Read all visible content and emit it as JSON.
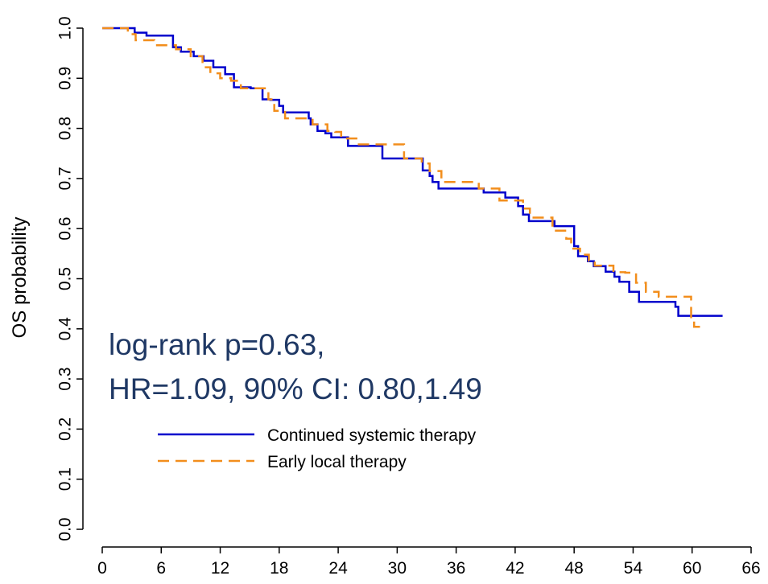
{
  "chart_data": {
    "type": "line",
    "ylabel": "OS probability",
    "xlabel": "",
    "xlim": [
      0,
      66
    ],
    "ylim": [
      0,
      1
    ],
    "x_ticks": [
      "0",
      "6",
      "12",
      "18",
      "24",
      "30",
      "36",
      "42",
      "48",
      "54",
      "60",
      "66"
    ],
    "y_ticks": [
      "0.0",
      "0.1",
      "0.2",
      "0.3",
      "0.4",
      "0.5",
      "0.6",
      "0.7",
      "0.8",
      "0.9",
      "1.0"
    ],
    "grid": false,
    "legend_position": "bottom-left",
    "annotations": [
      "log-rank p=0.63,",
      "HR=1.09, 90% CI: 0.80,1.49"
    ],
    "series": [
      {
        "name": "Continued systemic therapy",
        "color": "#0000cc",
        "style": "solid",
        "x": [
          0,
          3.3,
          4.5,
          7.2,
          8.0,
          9.3,
          10.3,
          11.3,
          12.5,
          13.4,
          15.1,
          16.3,
          17.1,
          18.0,
          18.4,
          19.7,
          21.0,
          21.2,
          21.9,
          22.7,
          23.3,
          25.0,
          28.5,
          30.6,
          32.6,
          33.3,
          33.6,
          34.2,
          38.8,
          41.0,
          42.3,
          42.8,
          43.4,
          46.0,
          48.0,
          48.4,
          49.4,
          50.0,
          50.6,
          51.2,
          52.1,
          52.6,
          53.6,
          54.6,
          58.3,
          58.6,
          63.1
        ],
        "y": [
          1.0,
          0.991,
          0.985,
          0.962,
          0.953,
          0.944,
          0.935,
          0.922,
          0.908,
          0.882,
          0.88,
          0.858,
          0.857,
          0.845,
          0.832,
          0.832,
          0.82,
          0.808,
          0.795,
          0.79,
          0.782,
          0.765,
          0.74,
          0.74,
          0.716,
          0.705,
          0.693,
          0.68,
          0.672,
          0.662,
          0.645,
          0.628,
          0.615,
          0.605,
          0.565,
          0.545,
          0.535,
          0.525,
          0.525,
          0.514,
          0.504,
          0.494,
          0.474,
          0.454,
          0.444,
          0.426,
          0.426
        ]
      },
      {
        "name": "Early local therapy",
        "color": "#f28e1c",
        "style": "dashed",
        "x": [
          0,
          2.6,
          3.4,
          5.3,
          7.5,
          9.0,
          10.2,
          11.0,
          12.0,
          13.1,
          14.1,
          16.9,
          17.5,
          18.6,
          21.4,
          22.9,
          23.7,
          24.3,
          26.0,
          28.0,
          30.7,
          32.5,
          33.3,
          34.5,
          38.3,
          40.4,
          42.8,
          43.5,
          45.8,
          47.2,
          47.7,
          48.6,
          49.5,
          50.1,
          51.2,
          52.0,
          53.2,
          54.3,
          55.3,
          56.6,
          59.9,
          60.2,
          60.8
        ],
        "y": [
          1.0,
          0.988,
          0.976,
          0.966,
          0.958,
          0.944,
          0.922,
          0.91,
          0.9,
          0.895,
          0.88,
          0.858,
          0.835,
          0.82,
          0.808,
          0.795,
          0.793,
          0.78,
          0.768,
          0.768,
          0.74,
          0.73,
          0.715,
          0.693,
          0.68,
          0.656,
          0.64,
          0.622,
          0.596,
          0.58,
          0.56,
          0.548,
          0.536,
          0.526,
          0.526,
          0.513,
          0.512,
          0.492,
          0.474,
          0.464,
          0.415,
          0.404,
          0.404
        ]
      }
    ]
  }
}
